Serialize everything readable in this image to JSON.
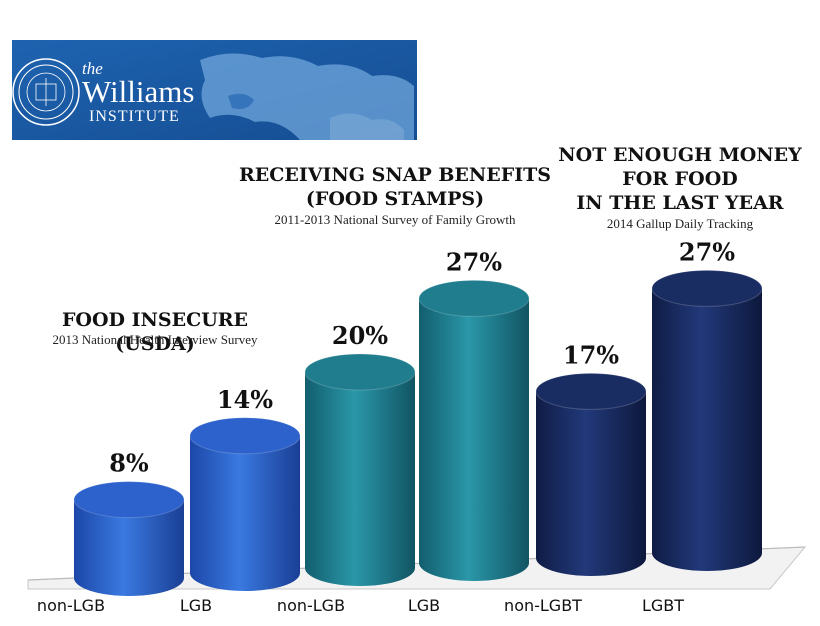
{
  "banner": {
    "logo_the": "the",
    "logo_name": "Williams",
    "logo_institute": "INSTITUTE",
    "seal": "seal-icon",
    "background": "world-map",
    "color": "#1f5fa8"
  },
  "groups": [
    {
      "title": "FOOD INSECURE (USDA)",
      "subtitle": "2013 National Health Interview Survey",
      "color": "#2a5fc9"
    },
    {
      "title": "RECEIVING SNAP BENEFITS",
      "title2": "(FOOD STAMPS)",
      "subtitle": "2011-2013 National Survey of Family Growth",
      "color": "#1e7a8c"
    },
    {
      "title": "NOT ENOUGH MONEY",
      "title2": "FOR FOOD",
      "title3": "IN THE LAST YEAR",
      "subtitle": "2014 Gallup Daily Tracking",
      "color": "#17285c"
    }
  ],
  "chart_data": {
    "type": "bar",
    "categories": [
      "non-LGB",
      "LGB",
      "non-LGB",
      "LGB",
      "non-LGBT",
      "LGBT"
    ],
    "values": [
      8,
      14,
      20,
      27,
      17,
      27
    ],
    "value_labels": [
      "8%",
      "14%",
      "20%",
      "27%",
      "17%",
      "27%"
    ],
    "group_index": [
      0,
      0,
      1,
      1,
      2,
      2
    ],
    "ylim": [
      0,
      30
    ],
    "grid": false,
    "legend": "none"
  }
}
